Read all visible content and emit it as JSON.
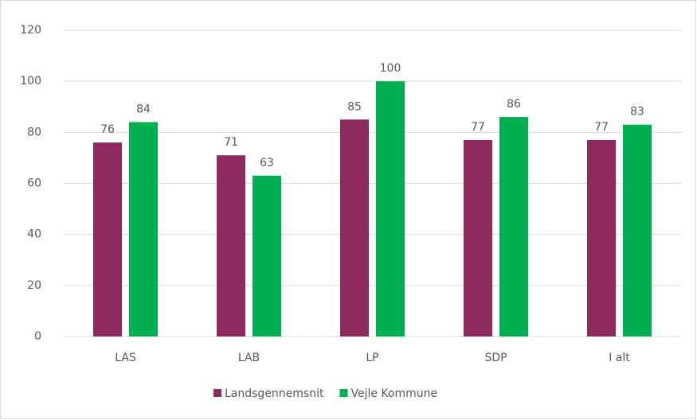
{
  "chart_data": {
    "type": "bar",
    "categories": [
      "LAS",
      "LAB",
      "LP",
      "SDP",
      "I alt"
    ],
    "series": [
      {
        "name": "Landsgennemsnit",
        "color": "#8e2a5e",
        "values": [
          76,
          71,
          85,
          77,
          77
        ]
      },
      {
        "name": "Vejle Kommune",
        "color": "#00b050",
        "values": [
          84,
          63,
          100,
          86,
          83
        ]
      }
    ],
    "ylim": [
      0,
      120
    ],
    "yticks": [
      0,
      20,
      40,
      60,
      80,
      100,
      120
    ],
    "grid": true,
    "legend": "bottom"
  }
}
